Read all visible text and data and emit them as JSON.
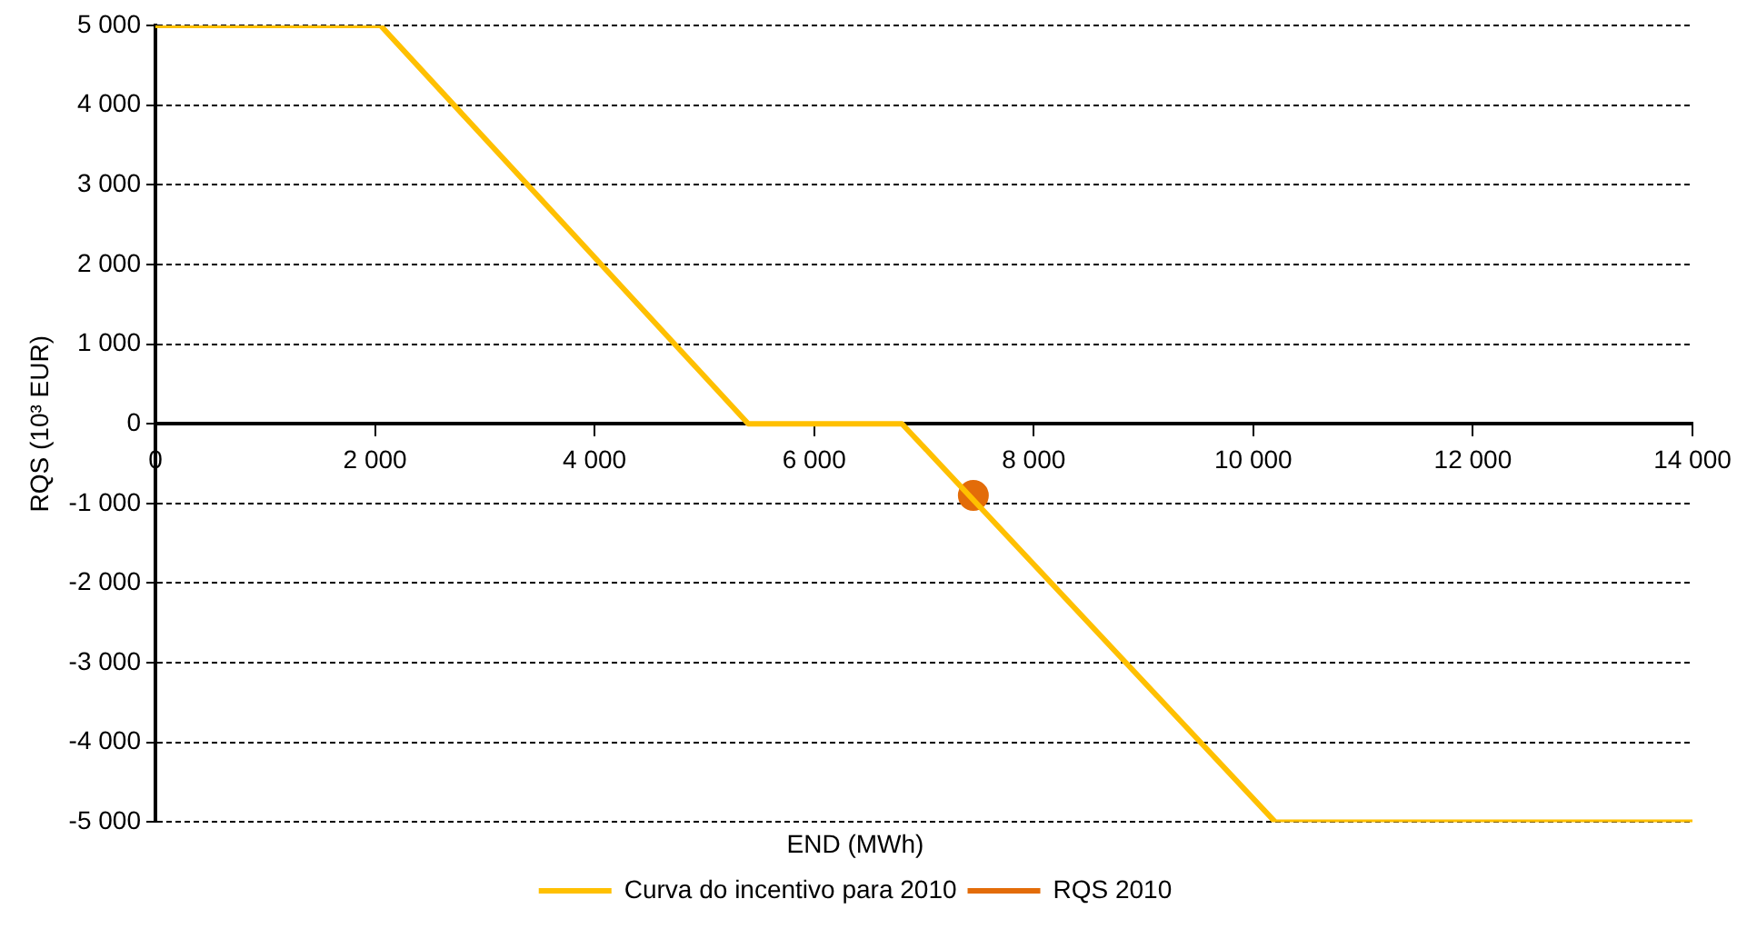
{
  "chart_data": {
    "type": "line",
    "xlabel": "END (MWh)",
    "ylabel": "RQS (10³ EUR)",
    "xlim": [
      0,
      14000
    ],
    "xticks": [
      {
        "value": 0,
        "label": "0"
      },
      {
        "value": 2000,
        "label": "2 000"
      },
      {
        "value": 4000,
        "label": "4 000"
      },
      {
        "value": 6000,
        "label": "6 000"
      },
      {
        "value": 8000,
        "label": "8 000"
      },
      {
        "value": 10000,
        "label": "10 000"
      },
      {
        "value": 12000,
        "label": "12 000"
      },
      {
        "value": 14000,
        "label": "14 000"
      }
    ],
    "ylim": [
      -5000,
      5000
    ],
    "yticks": [
      {
        "value": -5000,
        "label": "-5 000"
      },
      {
        "value": -4000,
        "label": "-4 000"
      },
      {
        "value": -3000,
        "label": "-3 000"
      },
      {
        "value": -2000,
        "label": "-2 000"
      },
      {
        "value": -1000,
        "label": "-1 000"
      },
      {
        "value": 0,
        "label": "0"
      },
      {
        "value": 1000,
        "label": "1 000"
      },
      {
        "value": 2000,
        "label": "2 000"
      },
      {
        "value": 3000,
        "label": "3 000"
      },
      {
        "value": 4000,
        "label": "4 000"
      },
      {
        "value": 5000,
        "label": "5 000"
      }
    ],
    "grid": "y",
    "legend": "bottom",
    "series": [
      {
        "name": "Curva do incentivo para 2010",
        "color": "#ffc000",
        "type": "line",
        "marker": "none",
        "x": [
          0,
          2050,
          5400,
          6800,
          10200,
          14000
        ],
        "values": [
          5000,
          5000,
          0,
          0,
          -5000,
          -5000
        ]
      },
      {
        "name": "RQS 2010",
        "color": "#e36c09",
        "type": "scatter",
        "marker": "circle",
        "x": [
          7450
        ],
        "values": [
          -900
        ]
      }
    ]
  }
}
